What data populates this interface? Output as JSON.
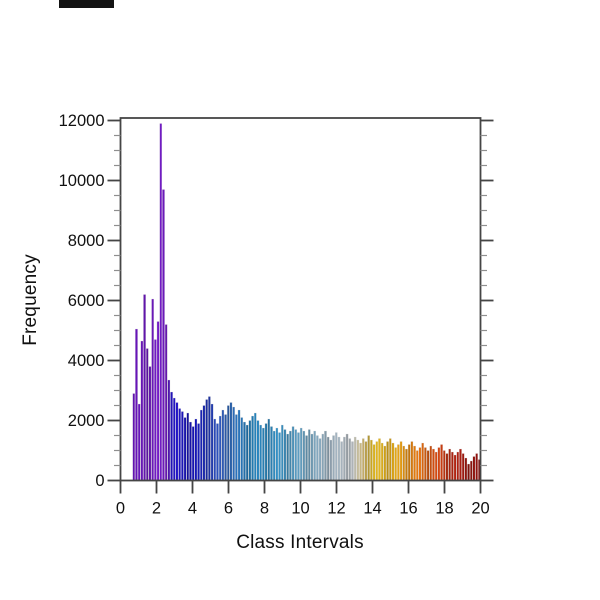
{
  "figure": {
    "y_axis_title": "Frequency",
    "x_axis_title": "Class Intervals"
  },
  "screen_mark": {
    "color": "#131313"
  },
  "chart_data": {
    "type": "bar",
    "subtype": "histogram",
    "title": "",
    "xlabel": "Class Intervals",
    "ylabel": "Frequency",
    "xlim": [
      0,
      20
    ],
    "ylim": [
      0,
      12000
    ],
    "x_ticks": [
      0,
      2,
      4,
      6,
      8,
      10,
      12,
      14,
      16,
      18,
      20
    ],
    "y_ticks": [
      0,
      2000,
      4000,
      6000,
      8000,
      10000,
      12000
    ],
    "y_minor_step": 500,
    "grid": false,
    "legend": false,
    "box": true,
    "bin_start": 0.675,
    "bin_width": 0.15,
    "peak": {
      "x": 2.25,
      "value": 11900
    },
    "frequencies": [
      2900,
      5050,
      2550,
      4650,
      6200,
      4400,
      3800,
      6050,
      4700,
      5300,
      11900,
      9700,
      5200,
      3350,
      2950,
      2750,
      2600,
      2400,
      2300,
      2100,
      2250,
      1950,
      1800,
      2050,
      1900,
      2350,
      2500,
      2700,
      2800,
      2550,
      2050,
      1900,
      2150,
      2350,
      2200,
      2500,
      2600,
      2450,
      2200,
      2350,
      2100,
      1950,
      1850,
      2000,
      2150,
      2250,
      2000,
      1850,
      1750,
      1900,
      2050,
      1800,
      1650,
      1750,
      1600,
      1850,
      1700,
      1550,
      1650,
      1800,
      1700,
      1600,
      1750,
      1650,
      1500,
      1700,
      1550,
      1650,
      1500,
      1400,
      1550,
      1650,
      1450,
      1350,
      1500,
      1600,
      1450,
      1300,
      1450,
      1550,
      1400,
      1300,
      1450,
      1350,
      1250,
      1400,
      1300,
      1500,
      1350,
      1200,
      1300,
      1400,
      1250,
      1150,
      1300,
      1400,
      1250,
      1100,
      1200,
      1300,
      1150,
      1050,
      1200,
      1300,
      1150,
      1000,
      1100,
      1250,
      1100,
      1000,
      1150,
      1050,
      950,
      1100,
      1200,
      1000,
      900,
      1050,
      950,
      850,
      950,
      1050,
      900,
      750,
      550,
      650,
      800,
      900,
      700
    ],
    "palette_stops": [
      [
        0.7,
        "#5911A2"
      ],
      [
        1.6,
        "#6316AD"
      ],
      [
        2.65,
        "#6A1AB5"
      ],
      [
        2.8,
        "#2113B4"
      ],
      [
        4.2,
        "#1313A3"
      ],
      [
        5.8,
        "#2E5AA8"
      ],
      [
        7.2,
        "#1F72A6"
      ],
      [
        8.8,
        "#2F81AF"
      ],
      [
        10.2,
        "#5E8FAB"
      ],
      [
        11.6,
        "#8A9DAB"
      ],
      [
        12.9,
        "#A6ABAF"
      ],
      [
        13.6,
        "#BCA256"
      ],
      [
        14.0,
        "#C7A51E"
      ],
      [
        15.3,
        "#CC9614"
      ],
      [
        16.4,
        "#CE6E0D"
      ],
      [
        17.4,
        "#C4480F"
      ],
      [
        18.4,
        "#A62311"
      ],
      [
        19.3,
        "#8C150F"
      ],
      [
        20.0,
        "#7D100D"
      ]
    ],
    "axis_color": "#454545",
    "minor_tick_color": "#8f8f8f",
    "text_color": "#111111"
  }
}
